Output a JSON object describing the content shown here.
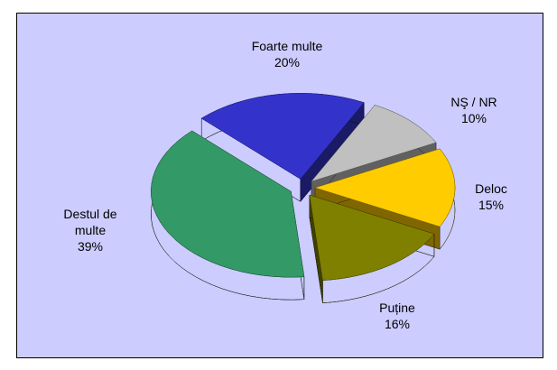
{
  "chart_data": {
    "type": "pie",
    "categories": [
      "Foarte multe",
      "NŞ / NR",
      "Deloc",
      "Puține",
      "Destul de multe"
    ],
    "values": [
      20,
      10,
      15,
      16,
      39
    ],
    "value_labels": [
      "20%",
      "10%",
      "15%",
      "16%",
      "39%"
    ],
    "colors": [
      "#3333cc",
      "#c0c0c0",
      "#ffcc00",
      "#808000",
      "#339966"
    ],
    "three_d": true,
    "exploded": true
  }
}
